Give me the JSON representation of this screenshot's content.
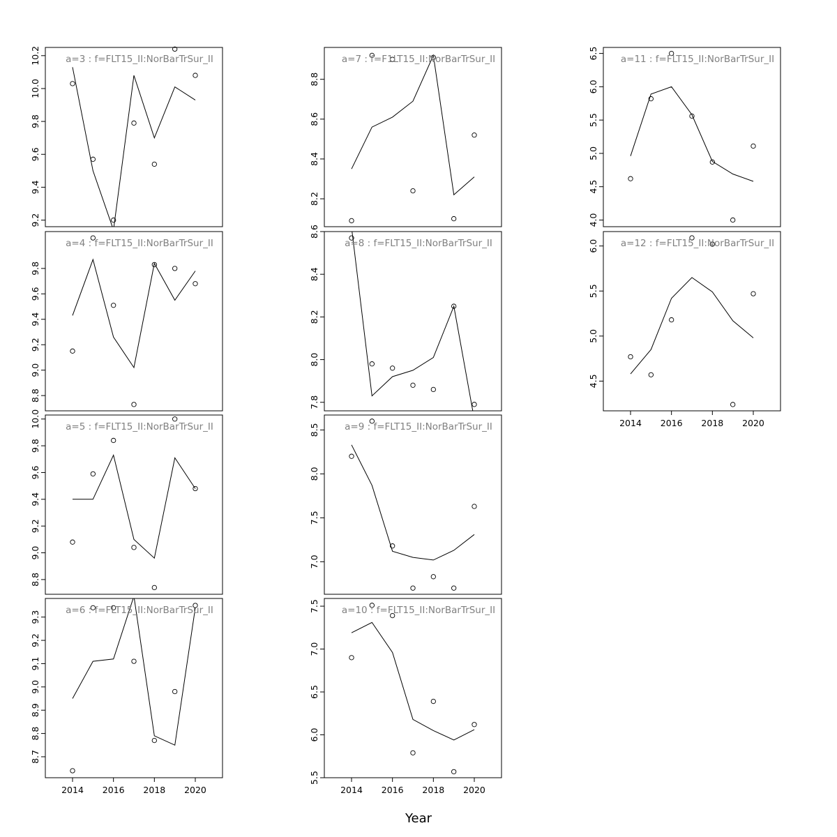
{
  "chart_data": {
    "type": "line",
    "xlabel": "Year",
    "x": [
      2014,
      2015,
      2016,
      2017,
      2018,
      2019,
      2020
    ],
    "xlim": [
      2012.67,
      2021.33
    ],
    "xticks": [
      2014,
      2016,
      2018,
      2020
    ],
    "panels": [
      {
        "title": "a=3  :  f=FLT15_II:NorBarTrSur_II",
        "ylim": [
          9.16,
          10.25
        ],
        "yticks": [
          "9.2",
          "9.4",
          "9.6",
          "9.8",
          "10.0",
          "10.2"
        ],
        "observed": [
          10.03,
          9.57,
          9.2,
          9.79,
          9.54,
          10.24,
          10.08
        ],
        "fitted": [
          10.13,
          9.5,
          9.14,
          10.08,
          9.7,
          10.01,
          9.93
        ]
      },
      {
        "title": "a=4  :  f=FLT15_II:NorBarTrSur_II",
        "ylim": [
          8.68,
          10.09
        ],
        "yticks": [
          "8.8",
          "9.0",
          "9.2",
          "9.4",
          "9.6",
          "9.8"
        ],
        "observed": [
          9.15,
          10.04,
          9.51,
          8.73,
          9.83,
          9.8,
          9.68
        ],
        "fitted": [
          9.43,
          9.87,
          9.26,
          9.02,
          9.84,
          9.55,
          9.78
        ]
      },
      {
        "title": "a=5  :  f=FLT15_II:NorBarTrSur_II",
        "ylim": [
          8.69,
          10.03
        ],
        "yticks": [
          "8.8",
          "9.0",
          "9.2",
          "9.4",
          "9.6",
          "9.8",
          "10.0"
        ],
        "observed": [
          9.08,
          9.59,
          9.84,
          9.04,
          8.74,
          10.0,
          9.48
        ],
        "fitted": [
          9.4,
          9.4,
          9.73,
          9.1,
          8.96,
          9.71,
          9.48
        ]
      },
      {
        "title": "a=6  :  f=FLT15_II:NorBarTrSur_II",
        "ylim": [
          8.61,
          9.38
        ],
        "yticks": [
          "8.7",
          "8.8",
          "8.9",
          "9.0",
          "9.1",
          "9.2",
          "9.3"
        ],
        "observed": [
          8.64,
          9.34,
          9.34,
          9.11,
          8.77,
          8.98,
          9.35
        ],
        "fitted": [
          8.95,
          9.11,
          9.12,
          9.39,
          8.79,
          8.75,
          9.34
        ]
      },
      {
        "title": "a=7  :  f=F1LT15_II:NorBarTrSur_II",
        "ylim": [
          8.06,
          8.96
        ],
        "yticks": [
          "8.2",
          "8.4",
          "8.6",
          "8.8"
        ],
        "observed": [
          8.09,
          8.92,
          8.9,
          8.24,
          8.91,
          8.1,
          8.52
        ],
        "fitted": [
          8.35,
          8.56,
          8.61,
          8.69,
          8.92,
          8.22,
          8.31
        ]
      },
      {
        "title": "a=8  :  f=FLT15_II:NorBarTrSur_II",
        "ylim": [
          7.76,
          8.6
        ],
        "yticks": [
          "7.8",
          "8.0",
          "8.2",
          "8.4",
          "8.6"
        ],
        "observed": [
          8.57,
          7.98,
          7.96,
          7.88,
          7.86,
          8.25,
          7.79
        ],
        "fitted": [
          8.62,
          7.83,
          7.92,
          7.95,
          8.01,
          8.25,
          7.72
        ]
      },
      {
        "title": "a=9  :  f=FLT15_II:NorBarTrSur_II",
        "ylim": [
          6.63,
          8.67
        ],
        "yticks": [
          "7.0",
          "7.5",
          "8.0",
          "8.5"
        ],
        "observed": [
          8.2,
          8.6,
          7.18,
          6.7,
          6.83,
          6.7,
          7.63
        ],
        "fitted": [
          8.33,
          7.87,
          7.12,
          7.05,
          7.02,
          7.13,
          7.31
        ]
      },
      {
        "title": "a=10  :  f=FLT15_II:NorBarTrSur_II",
        "ylim": [
          5.5,
          7.59
        ],
        "yticks": [
          "5.5",
          "6.0",
          "6.5",
          "7.0",
          "7.5"
        ],
        "observed": [
          6.9,
          7.51,
          7.39,
          5.79,
          6.39,
          5.57,
          6.12
        ],
        "fitted": [
          7.19,
          7.31,
          6.96,
          6.18,
          6.05,
          5.94,
          6.06
        ]
      },
      {
        "title": "a=11  :  f=FLT15_II:NorBarTrSur_II",
        "ylim": [
          3.9,
          6.59
        ],
        "yticks": [
          "4.0",
          "4.5",
          "5.0",
          "5.5",
          "6.0",
          "6.5"
        ],
        "observed": [
          4.62,
          5.82,
          6.5,
          5.56,
          4.87,
          4.0,
          5.11
        ],
        "fitted": [
          4.96,
          5.89,
          6.0,
          5.58,
          4.88,
          4.69,
          4.58
        ]
      },
      {
        "title": "a=12  :  f=FLT15_II:NorBarTrSur_II",
        "ylim": [
          4.17,
          6.16
        ],
        "yticks": [
          "4.5",
          "5.0",
          "5.5",
          "6.0"
        ],
        "observed": [
          4.77,
          4.57,
          5.18,
          6.09,
          6.02,
          4.24,
          5.47
        ],
        "fitted": [
          4.58,
          4.85,
          5.42,
          5.65,
          5.49,
          5.17,
          4.98
        ]
      }
    ]
  }
}
